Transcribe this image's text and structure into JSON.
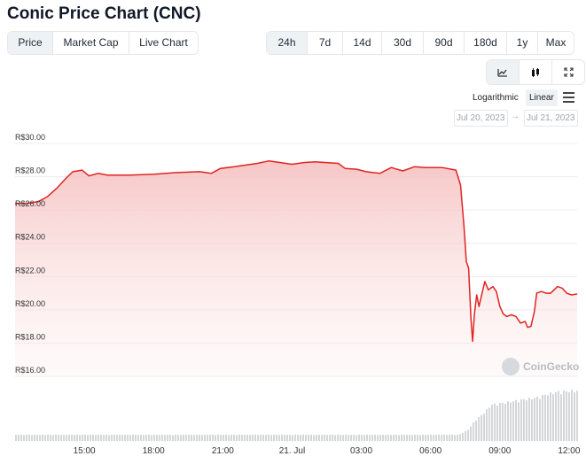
{
  "title": "Conic Price Chart (CNC)",
  "tabs": [
    "Price",
    "Market Cap",
    "Live Chart"
  ],
  "active_tab": "Price",
  "ranges": [
    "24h",
    "7d",
    "14d",
    "30d",
    "90d",
    "180d",
    "1y",
    "Max"
  ],
  "active_range": "24h",
  "tools": [
    {
      "icon": "line-chart-icon",
      "active": true
    },
    {
      "icon": "candlestick-icon",
      "active": false
    },
    {
      "icon": "fullscreen-icon",
      "active": false
    }
  ],
  "scale": {
    "logarithmic": "Logarithmic",
    "linear": "Linear",
    "active": "linear"
  },
  "date_from": "Jul 20, 2023",
  "date_to": "Jul 21, 2023",
  "date_separator": "→",
  "watermark": "CoinGecko",
  "colors": {
    "line": "#e02424",
    "area_top": "#f8c9c9",
    "volume": "#d4d6d9",
    "grid": "#e9ecef"
  },
  "chart_data": {
    "type": "area",
    "currency_prefix": "R$",
    "ylim": [
      16,
      30
    ],
    "y_ticks": [
      "R$30.00",
      "R$28.00",
      "R$26.00",
      "R$24.00",
      "R$22.00",
      "R$20.00",
      "R$18.00",
      "R$16.00"
    ],
    "y_tick_values": [
      30,
      28,
      26,
      24,
      22,
      20,
      18,
      16
    ],
    "x_ticks": [
      "15:00",
      "18:00",
      "21:00",
      "21. Jul",
      "03:00",
      "06:00",
      "09:00",
      "12:00"
    ],
    "x_tick_hours": [
      15,
      18,
      21,
      24,
      27,
      30,
      33,
      36
    ],
    "xlim_hours": [
      12.0,
      36.35
    ],
    "grid": true,
    "series": [
      {
        "points": [
          [
            12.0,
            26.4
          ],
          [
            12.5,
            26.4
          ],
          [
            13.0,
            26.5
          ],
          [
            13.4,
            26.8
          ],
          [
            13.8,
            27.3
          ],
          [
            14.2,
            27.9
          ],
          [
            14.5,
            28.3
          ],
          [
            14.9,
            28.4
          ],
          [
            15.2,
            28.05
          ],
          [
            15.6,
            28.2
          ],
          [
            16.0,
            28.1
          ],
          [
            17.0,
            28.1
          ],
          [
            18.0,
            28.15
          ],
          [
            19.0,
            28.25
          ],
          [
            20.0,
            28.3
          ],
          [
            20.5,
            28.2
          ],
          [
            20.9,
            28.5
          ],
          [
            21.5,
            28.6
          ],
          [
            22.0,
            28.7
          ],
          [
            22.5,
            28.8
          ],
          [
            23.0,
            28.95
          ],
          [
            23.5,
            28.85
          ],
          [
            24.0,
            28.75
          ],
          [
            24.5,
            28.85
          ],
          [
            25.0,
            28.9
          ],
          [
            25.5,
            28.85
          ],
          [
            26.0,
            28.8
          ],
          [
            26.3,
            28.5
          ],
          [
            26.8,
            28.45
          ],
          [
            27.2,
            28.3
          ],
          [
            27.8,
            28.2
          ],
          [
            28.3,
            28.55
          ],
          [
            28.8,
            28.35
          ],
          [
            29.3,
            28.6
          ],
          [
            29.8,
            28.55
          ],
          [
            30.5,
            28.55
          ],
          [
            31.1,
            28.4
          ],
          [
            31.3,
            27.5
          ],
          [
            31.45,
            25.0
          ],
          [
            31.55,
            22.9
          ],
          [
            31.65,
            22.5
          ],
          [
            31.75,
            19.5
          ],
          [
            31.82,
            18.1
          ],
          [
            31.9,
            19.7
          ],
          [
            32.0,
            20.9
          ],
          [
            32.1,
            20.2
          ],
          [
            32.2,
            20.8
          ],
          [
            32.35,
            21.7
          ],
          [
            32.5,
            21.2
          ],
          [
            32.7,
            21.4
          ],
          [
            32.85,
            21.1
          ],
          [
            33.0,
            20.2
          ],
          [
            33.15,
            19.75
          ],
          [
            33.3,
            19.6
          ],
          [
            33.5,
            19.7
          ],
          [
            33.7,
            19.6
          ],
          [
            33.9,
            19.2
          ],
          [
            34.1,
            19.3
          ],
          [
            34.2,
            18.95
          ],
          [
            34.35,
            19.0
          ],
          [
            34.5,
            19.9
          ],
          [
            34.6,
            21.0
          ],
          [
            34.8,
            21.1
          ],
          [
            35.0,
            21.0
          ],
          [
            35.2,
            21.0
          ],
          [
            35.5,
            21.4
          ],
          [
            35.7,
            21.3
          ],
          [
            35.9,
            21.0
          ],
          [
            36.1,
            20.9
          ],
          [
            36.35,
            20.95
          ]
        ]
      }
    ],
    "volume_profile": [
      [
        12.0,
        0.12
      ],
      [
        31.2,
        0.12
      ],
      [
        31.6,
        0.22
      ],
      [
        31.9,
        0.4
      ],
      [
        32.3,
        0.55
      ],
      [
        32.6,
        0.7
      ],
      [
        33.2,
        0.74
      ],
      [
        34.0,
        0.8
      ],
      [
        34.5,
        0.83
      ],
      [
        35.0,
        0.9
      ],
      [
        35.5,
        0.95
      ],
      [
        36.35,
        0.97
      ]
    ]
  }
}
